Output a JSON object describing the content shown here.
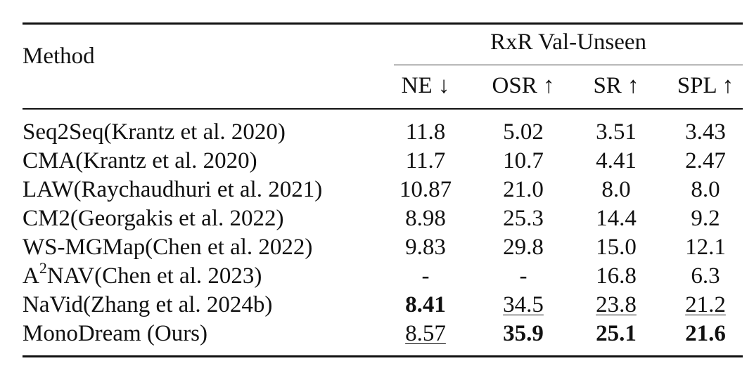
{
  "table": {
    "method_header": "Method",
    "group_header": "RxR Val-Unseen",
    "metric_headers": [
      "NE ↓",
      "OSR ↑",
      "SR ↑",
      "SPL ↑"
    ],
    "rows": [
      {
        "method": "Seq2Seq(Krantz et al. 2020)",
        "method_prefix": "",
        "method_superscript": "",
        "method_suffix": "",
        "values": [
          "11.8",
          "5.02",
          "3.51",
          "3.43"
        ],
        "bold": [
          false,
          false,
          false,
          false
        ],
        "underline": [
          false,
          false,
          false,
          false
        ]
      },
      {
        "method": "CMA(Krantz et al. 2020)",
        "method_prefix": "",
        "method_superscript": "",
        "method_suffix": "",
        "values": [
          "11.7",
          "10.7",
          "4.41",
          "2.47"
        ],
        "bold": [
          false,
          false,
          false,
          false
        ],
        "underline": [
          false,
          false,
          false,
          false
        ]
      },
      {
        "method": "LAW(Raychaudhuri et al. 2021)",
        "method_prefix": "",
        "method_superscript": "",
        "method_suffix": "",
        "values": [
          "10.87",
          "21.0",
          "8.0",
          "8.0"
        ],
        "bold": [
          false,
          false,
          false,
          false
        ],
        "underline": [
          false,
          false,
          false,
          false
        ]
      },
      {
        "method": "CM2(Georgakis et al. 2022)",
        "method_prefix": "",
        "method_superscript": "",
        "method_suffix": "",
        "values": [
          "8.98",
          "25.3",
          "14.4",
          "9.2"
        ],
        "bold": [
          false,
          false,
          false,
          false
        ],
        "underline": [
          false,
          false,
          false,
          false
        ]
      },
      {
        "method": "WS-MGMap(Chen et al. 2022)",
        "method_prefix": "",
        "method_superscript": "",
        "method_suffix": "",
        "values": [
          "9.83",
          "29.8",
          "15.0",
          "12.1"
        ],
        "bold": [
          false,
          false,
          false,
          false
        ],
        "underline": [
          false,
          false,
          false,
          false
        ]
      },
      {
        "method": "",
        "method_prefix": "A",
        "method_superscript": "2",
        "method_suffix": "NAV(Chen et al. 2023)",
        "values": [
          "-",
          "-",
          "16.8",
          "6.3"
        ],
        "bold": [
          false,
          false,
          false,
          false
        ],
        "underline": [
          false,
          false,
          false,
          false
        ]
      },
      {
        "method": "NaVid(Zhang et al. 2024b)",
        "method_prefix": "",
        "method_superscript": "",
        "method_suffix": "",
        "values": [
          "8.41",
          "34.5",
          "23.8",
          "21.2"
        ],
        "bold": [
          true,
          false,
          false,
          false
        ],
        "underline": [
          false,
          true,
          true,
          true
        ]
      },
      {
        "method": "MonoDream (Ours)",
        "method_prefix": "",
        "method_superscript": "",
        "method_suffix": "",
        "values": [
          "8.57",
          "35.9",
          "25.1",
          "21.6"
        ],
        "bold": [
          false,
          true,
          true,
          true
        ],
        "underline": [
          true,
          false,
          false,
          false
        ]
      }
    ]
  }
}
